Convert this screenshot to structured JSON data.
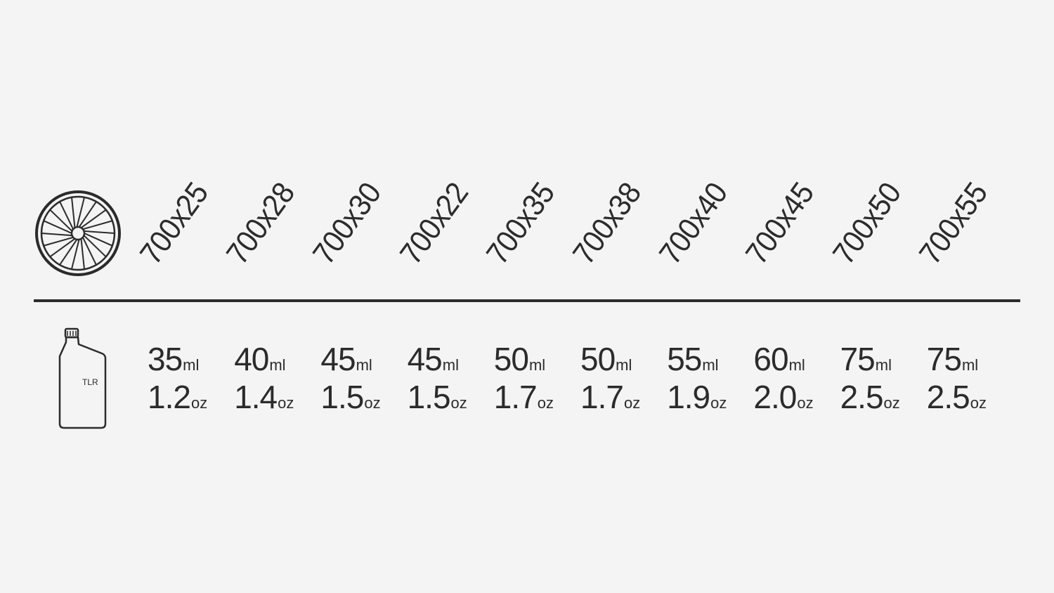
{
  "icons": {
    "tire": "bicycle-wheel-icon",
    "sealant": "sealant-bottle-icon"
  },
  "bottle_label": "TLR",
  "columns": [
    {
      "size": "700x25",
      "ml": "35",
      "oz": "1.2"
    },
    {
      "size": "700x28",
      "ml": "40",
      "oz": "1.4"
    },
    {
      "size": "700x30",
      "ml": "45",
      "oz": "1.5"
    },
    {
      "size": "700x22",
      "ml": "45",
      "oz": "1.5"
    },
    {
      "size": "700x35",
      "ml": "50",
      "oz": "1.7"
    },
    {
      "size": "700x38",
      "ml": "50",
      "oz": "1.7"
    },
    {
      "size": "700x40",
      "ml": "55",
      "oz": "1.9"
    },
    {
      "size": "700x45",
      "ml": "60",
      "oz": "2.0"
    },
    {
      "size": "700x50",
      "ml": "75",
      "oz": "2.5"
    },
    {
      "size": "700x55",
      "ml": "75",
      "oz": "2.5"
    }
  ],
  "units": {
    "ml": "ml",
    "oz": "oz"
  },
  "colors": {
    "background": "#f4f4f4",
    "ink": "#2b2b2b"
  }
}
